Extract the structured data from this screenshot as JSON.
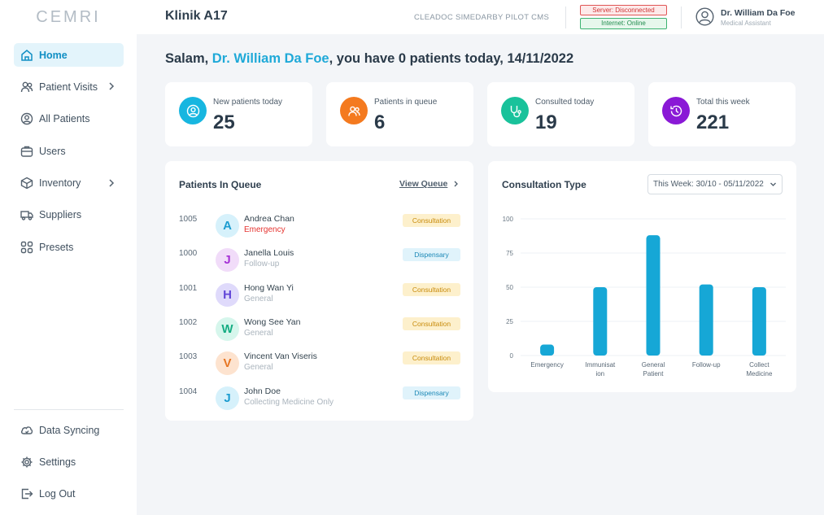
{
  "app": {
    "logo": "CEMRI"
  },
  "sidebar": {
    "items": [
      {
        "label": "Home",
        "icon": "home-icon",
        "active": true
      },
      {
        "label": "Patient Visits",
        "icon": "patient-visits-icon",
        "chevron": true
      },
      {
        "label": "All Patients",
        "icon": "all-patients-icon"
      },
      {
        "label": "Users",
        "icon": "users-icon"
      },
      {
        "label": "Inventory",
        "icon": "inventory-icon",
        "chevron": true
      },
      {
        "label": "Suppliers",
        "icon": "suppliers-icon"
      },
      {
        "label": "Presets",
        "icon": "presets-icon"
      }
    ],
    "bottom_items": [
      {
        "label": "Data Syncing",
        "icon": "data-syncing-icon"
      },
      {
        "label": "Settings",
        "icon": "settings-icon"
      },
      {
        "label": "Log Out",
        "icon": "logout-icon"
      }
    ]
  },
  "header": {
    "clinic": "Klinik A17",
    "cms": "CLEADOC SIMEDARBY PILOT CMS",
    "server_status": "Server: Disconnected",
    "internet_status": "Internet: Online",
    "user_name": "Dr. William Da Foe",
    "user_role": "Medical Assistant"
  },
  "greeting": {
    "prefix": "Salam, ",
    "doctor": "Dr. William Da Foe",
    "suffix": ", you have 0 patients today, 14/11/2022"
  },
  "stats": [
    {
      "label": "New patients today",
      "value": "25",
      "color": "#17b6e0",
      "icon": "user-circle-icon"
    },
    {
      "label": "Patients in queue",
      "value": "6",
      "color": "#f47a1f",
      "icon": "patients-queue-icon"
    },
    {
      "label": "Consulted today",
      "value": "19",
      "color": "#19c29b",
      "icon": "stethoscope-icon"
    },
    {
      "label": "Total this week",
      "value": "221",
      "color": "#8a19d6",
      "icon": "history-icon"
    }
  ],
  "queue": {
    "title": "Patients In Queue",
    "view_label": "View Queue",
    "rows": [
      {
        "id": "1005",
        "initial": "A",
        "name": "Andrea Chan",
        "type": "Emergency",
        "tag": "Consultation",
        "tag_kind": "consult",
        "avatar_bg": "#d6f1fb",
        "avatar_fg": "#1c9cd0",
        "emergency": true
      },
      {
        "id": "1000",
        "initial": "J",
        "name": "Janella Louis",
        "type": "Follow-up",
        "tag": "Dispensary",
        "tag_kind": "dispense",
        "avatar_bg": "#f1dcf9",
        "avatar_fg": "#a530d6"
      },
      {
        "id": "1001",
        "initial": "H",
        "name": "Hong Wan Yi",
        "type": "General",
        "tag": "Consultation",
        "tag_kind": "consult",
        "avatar_bg": "#dfdafb",
        "avatar_fg": "#6246d8"
      },
      {
        "id": "1002",
        "initial": "W",
        "name": "Wong See Yan",
        "type": "General",
        "tag": "Consultation",
        "tag_kind": "consult",
        "avatar_bg": "#d6f6ec",
        "avatar_fg": "#16ad83"
      },
      {
        "id": "1003",
        "initial": "V",
        "name": "Vincent Van Viseris",
        "type": "General",
        "tag": "Consultation",
        "tag_kind": "consult",
        "avatar_bg": "#fde3cf",
        "avatar_fg": "#e67522"
      },
      {
        "id": "1004",
        "initial": "J",
        "name": "John Doe",
        "type": "Collecting Medicine Only",
        "tag": "Dispensary",
        "tag_kind": "dispense",
        "avatar_bg": "#d6f1fb",
        "avatar_fg": "#1c9cd0"
      }
    ]
  },
  "chart_panel": {
    "title": "Consultation Type",
    "period": "This Week: 30/10 - 05/11/2022"
  },
  "chart_data": {
    "type": "bar",
    "title": "Consultation Type",
    "categories": [
      [
        "Emergency"
      ],
      [
        "Immunisat",
        "ion"
      ],
      [
        "General",
        "Patient"
      ],
      [
        "Follow-up"
      ],
      [
        "Collect",
        "Medicine"
      ]
    ],
    "values": [
      8,
      50,
      88,
      52,
      50
    ],
    "yticks": [
      0,
      25,
      50,
      75,
      100
    ],
    "ylim": [
      0,
      100
    ],
    "bar_color": "#16a7d6",
    "grid": true
  }
}
